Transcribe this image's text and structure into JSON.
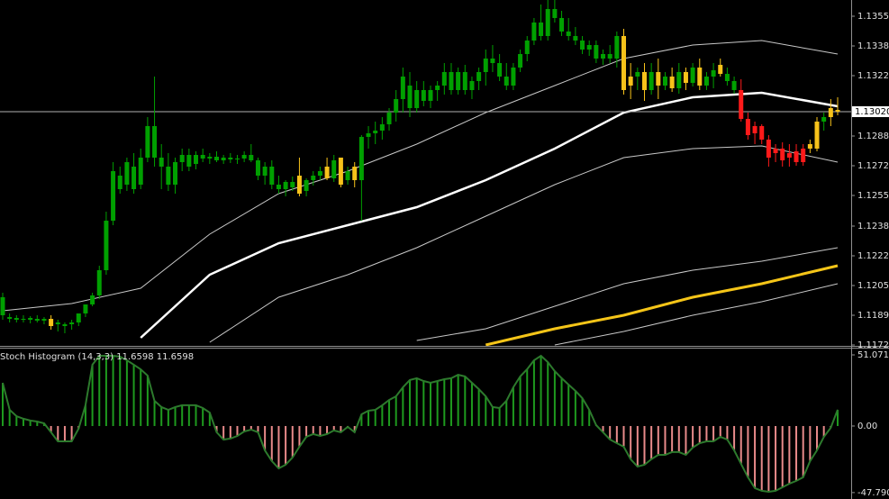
{
  "chart_data": [
    {
      "type": "candlestick",
      "ylim": [
        1.11725,
        1.1364
      ],
      "yticks": [
        {
          "value": 1.1355,
          "label": "1.13550"
        },
        1.13385,
        {
          "value": 1.1322,
          "label": "1.13220"
        },
        1.12885,
        {
          "value": 1.1272,
          "label": "1.12720"
        },
        1.12555,
        1.12385,
        {
          "value": 1.1222,
          "label": "1.12220"
        },
        1.12055,
        {
          "value": 1.1189,
          "label": "1.11890"
        },
        1.11725
      ],
      "current_price": {
        "value": 1.1302,
        "label": "1.13020"
      },
      "palette": {
        "g": "#00a000",
        "y": "#f7c21a",
        "r": "#ff1a1a"
      },
      "candle_colors": [
        "g",
        "g",
        "g",
        "g",
        "g",
        "g",
        "g",
        "y",
        "g",
        "g",
        "g",
        "g",
        "g",
        "g",
        "g",
        "g",
        "g",
        "g",
        "g",
        "g",
        "g",
        "g",
        "g",
        "g",
        "g",
        "g",
        "g",
        "g",
        "g",
        "g",
        "g",
        "g",
        "g",
        "g",
        "g",
        "g",
        "g",
        "g",
        "g",
        "g",
        "g",
        "g",
        "g",
        "y",
        "g",
        "g",
        "g",
        "y",
        "g",
        "y",
        "g",
        "y",
        "g",
        "g",
        "g",
        "g",
        "g",
        "g",
        "g",
        "g",
        "g",
        "g",
        "g",
        "g",
        "g",
        "g",
        "g",
        "g",
        "g",
        "g",
        "g",
        "g",
        "g",
        "g",
        "g",
        "g",
        "g",
        "g",
        "g",
        "g",
        "g",
        "g",
        "g",
        "g",
        "g",
        "g",
        "g",
        "g",
        "g",
        "g",
        "y",
        "y",
        "g",
        "y",
        "g",
        "y",
        "g",
        "y",
        "g",
        "y",
        "g",
        "y",
        "g",
        "g",
        "y",
        "g",
        "g",
        "r",
        "r",
        "r",
        "r",
        "r",
        "r",
        "r",
        "r",
        "r",
        "r",
        "y",
        "y",
        "g",
        "y",
        "y"
      ],
      "candles": [
        [
          1.1189,
          1.12015,
          1.11865,
          1.1199
        ],
        [
          1.1188,
          1.119,
          1.1185,
          1.1187
        ],
        [
          1.11865,
          1.1189,
          1.1185,
          1.11875
        ],
        [
          1.1187,
          1.1189,
          1.1185,
          1.11865
        ],
        [
          1.11865,
          1.11885,
          1.11845,
          1.11875
        ],
        [
          1.1187,
          1.1189,
          1.1185,
          1.1186
        ],
        [
          1.1186,
          1.1188,
          1.1184,
          1.1187
        ],
        [
          1.1187,
          1.1189,
          1.1181,
          1.1183
        ],
        [
          1.1184,
          1.11865,
          1.118,
          1.1185
        ],
        [
          1.1183,
          1.1185,
          1.1179,
          1.1184
        ],
        [
          1.1184,
          1.11865,
          1.1181,
          1.1185
        ],
        [
          1.1185,
          1.119,
          1.1183,
          1.119
        ],
        [
          1.119,
          1.1195,
          1.1188,
          1.1195
        ],
        [
          1.1195,
          1.12015,
          1.1194,
          1.12
        ],
        [
          1.12,
          1.12165,
          1.1198,
          1.1214
        ],
        [
          1.1214,
          1.12465,
          1.12115,
          1.12415
        ],
        [
          1.12415,
          1.1274,
          1.1239,
          1.1269
        ],
        [
          1.12665,
          1.12715,
          1.12565,
          1.1259
        ],
        [
          1.12615,
          1.12765,
          1.1258,
          1.1274
        ],
        [
          1.12715,
          1.1279,
          1.12565,
          1.1259
        ],
        [
          1.12615,
          1.12815,
          1.1259,
          1.12765
        ],
        [
          1.12765,
          1.1299,
          1.1274,
          1.1294
        ],
        [
          1.1294,
          1.13215,
          1.12715,
          1.12765
        ],
        [
          1.12765,
          1.1284,
          1.1259,
          1.12715
        ],
        [
          1.12715,
          1.1279,
          1.1258,
          1.12615
        ],
        [
          1.12615,
          1.12765,
          1.12565,
          1.1274
        ],
        [
          1.1274,
          1.12815,
          1.1269,
          1.1278
        ],
        [
          1.1278,
          1.12815,
          1.1269,
          1.12715
        ],
        [
          1.1273,
          1.128,
          1.127,
          1.1278
        ],
        [
          1.1278,
          1.12815,
          1.1274,
          1.1276
        ],
        [
          1.1276,
          1.1279,
          1.1273,
          1.1277
        ],
        [
          1.1277,
          1.128,
          1.1274,
          1.1275
        ],
        [
          1.1275,
          1.1278,
          1.1273,
          1.12765
        ],
        [
          1.12765,
          1.1279,
          1.12735,
          1.12755
        ],
        [
          1.12755,
          1.1278,
          1.1273,
          1.1276
        ],
        [
          1.1276,
          1.128,
          1.1274,
          1.1278
        ],
        [
          1.1278,
          1.1284,
          1.1274,
          1.1275
        ],
        [
          1.1275,
          1.12765,
          1.1264,
          1.12665
        ],
        [
          1.12665,
          1.1274,
          1.12615,
          1.12715
        ],
        [
          1.12715,
          1.1275,
          1.1259,
          1.12615
        ],
        [
          1.12615,
          1.12665,
          1.12565,
          1.1259
        ],
        [
          1.1259,
          1.1264,
          1.1255,
          1.1263
        ],
        [
          1.1263,
          1.1266,
          1.1258,
          1.126
        ],
        [
          1.12665,
          1.12765,
          1.1255,
          1.12565
        ],
        [
          1.1258,
          1.1265,
          1.1255,
          1.1264
        ],
        [
          1.1264,
          1.1269,
          1.1261,
          1.12665
        ],
        [
          1.12665,
          1.12715,
          1.1264,
          1.1269
        ],
        [
          1.12715,
          1.12765,
          1.1264,
          1.1265
        ],
        [
          1.1265,
          1.1278,
          1.1263,
          1.1275
        ],
        [
          1.12765,
          1.12765,
          1.126,
          1.12615
        ],
        [
          1.1264,
          1.12715,
          1.12615,
          1.1269
        ],
        [
          1.12715,
          1.1274,
          1.126,
          1.1264
        ],
        [
          1.1264,
          1.1289,
          1.12415,
          1.1288
        ],
        [
          1.1288,
          1.1294,
          1.12815,
          1.129
        ],
        [
          1.129,
          1.12965,
          1.1284,
          1.12915
        ],
        [
          1.12915,
          1.1299,
          1.12865,
          1.1295
        ],
        [
          1.1295,
          1.1304,
          1.12915,
          1.13015
        ],
        [
          1.13015,
          1.1314,
          1.12965,
          1.1309
        ],
        [
          1.1309,
          1.13265,
          1.13015,
          1.13215
        ],
        [
          1.13165,
          1.1324,
          1.1299,
          1.1304
        ],
        [
          1.1304,
          1.1319,
          1.13015,
          1.1314
        ],
        [
          1.1314,
          1.1319,
          1.1305,
          1.1308
        ],
        [
          1.1308,
          1.13165,
          1.1304,
          1.1314
        ],
        [
          1.1314,
          1.1319,
          1.1308,
          1.13165
        ],
        [
          1.13165,
          1.1329,
          1.13115,
          1.1324
        ],
        [
          1.1324,
          1.1329,
          1.13115,
          1.1314
        ],
        [
          1.1314,
          1.13265,
          1.13115,
          1.1324
        ],
        [
          1.1324,
          1.1328,
          1.13115,
          1.1314
        ],
        [
          1.1314,
          1.13215,
          1.1309,
          1.1319
        ],
        [
          1.1319,
          1.13265,
          1.1314,
          1.1324
        ],
        [
          1.1324,
          1.13365,
          1.13165,
          1.13315
        ],
        [
          1.13315,
          1.1339,
          1.1324,
          1.1329
        ],
        [
          1.1329,
          1.1334,
          1.1319,
          1.13215
        ],
        [
          1.13215,
          1.1329,
          1.1314,
          1.13165
        ],
        [
          1.13165,
          1.1329,
          1.1314,
          1.13265
        ],
        [
          1.13265,
          1.13365,
          1.1324,
          1.1334
        ],
        [
          1.1334,
          1.1344,
          1.133,
          1.13415
        ],
        [
          1.13415,
          1.1354,
          1.1339,
          1.13515
        ],
        [
          1.13515,
          1.13615,
          1.13415,
          1.1344
        ],
        [
          1.1344,
          1.1364,
          1.13415,
          1.1359
        ],
        [
          1.1359,
          1.1364,
          1.13515,
          1.1354
        ],
        [
          1.1354,
          1.1358,
          1.1344,
          1.13465
        ],
        [
          1.13465,
          1.1354,
          1.13415,
          1.1344
        ],
        [
          1.1344,
          1.1349,
          1.1339,
          1.13415
        ],
        [
          1.13415,
          1.1344,
          1.1334,
          1.13365
        ],
        [
          1.13365,
          1.13415,
          1.1333,
          1.1339
        ],
        [
          1.1339,
          1.13415,
          1.1329,
          1.13315
        ],
        [
          1.13315,
          1.13365,
          1.1328,
          1.1334
        ],
        [
          1.1334,
          1.1339,
          1.1329,
          1.13315
        ],
        [
          1.13315,
          1.13465,
          1.13265,
          1.1344
        ],
        [
          1.1344,
          1.1348,
          1.13115,
          1.1314
        ],
        [
          1.13165,
          1.1329,
          1.1309,
          1.13215
        ],
        [
          1.13215,
          1.13265,
          1.1314,
          1.1324
        ],
        [
          1.1324,
          1.1329,
          1.1308,
          1.1314
        ],
        [
          1.1314,
          1.1329,
          1.13115,
          1.1324
        ],
        [
          1.1324,
          1.13315,
          1.1309,
          1.13165
        ],
        [
          1.13165,
          1.1324,
          1.1314,
          1.13215
        ],
        [
          1.13215,
          1.13265,
          1.1313,
          1.1315
        ],
        [
          1.1315,
          1.1329,
          1.1312,
          1.1324
        ],
        [
          1.1324,
          1.13265,
          1.1314,
          1.1318
        ],
        [
          1.1318,
          1.1329,
          1.1316,
          1.13265
        ],
        [
          1.13265,
          1.13315,
          1.1314,
          1.13165
        ],
        [
          1.13165,
          1.1324,
          1.1314,
          1.13215
        ],
        [
          1.13215,
          1.1329,
          1.1315,
          1.1325
        ],
        [
          1.1328,
          1.13315,
          1.13215,
          1.1323
        ],
        [
          1.1323,
          1.13265,
          1.13165,
          1.1319
        ],
        [
          1.1319,
          1.13215,
          1.1312,
          1.1314
        ],
        [
          1.1314,
          1.132,
          1.12965,
          1.1298
        ],
        [
          1.1298,
          1.13015,
          1.12865,
          1.1289
        ],
        [
          1.129,
          1.12965,
          1.1284,
          1.1294
        ],
        [
          1.1294,
          1.1295,
          1.1284,
          1.12865
        ],
        [
          1.12865,
          1.1289,
          1.12715,
          1.12765
        ],
        [
          1.1279,
          1.1284,
          1.1274,
          1.12815
        ],
        [
          1.12815,
          1.1285,
          1.12715,
          1.1275
        ],
        [
          1.12765,
          1.1284,
          1.12715,
          1.1279
        ],
        [
          1.128,
          1.1284,
          1.1272,
          1.1274
        ],
        [
          1.1274,
          1.1284,
          1.1272,
          1.12815
        ],
        [
          1.12815,
          1.12865,
          1.1279,
          1.1284
        ],
        [
          1.12815,
          1.1299,
          1.128,
          1.12965
        ],
        [
          1.12965,
          1.13015,
          1.12915,
          1.1299
        ],
        [
          1.1299,
          1.1309,
          1.1294,
          1.1304
        ],
        [
          1.1303,
          1.131,
          1.13,
          1.1302
        ]
      ],
      "line_x": [
        0,
        10,
        20,
        30,
        40,
        50,
        60,
        70,
        80,
        90,
        100,
        110,
        121
      ],
      "lines": [
        {
          "color": "#c8c8c8",
          "width": 1,
          "values": [
            1.11915,
            1.11955,
            1.1204,
            1.1234,
            1.12565,
            1.1269,
            1.1284,
            1.13015,
            1.13165,
            1.13315,
            1.1339,
            1.13415,
            1.1334
          ]
        },
        {
          "color": "#ffffff",
          "width": 2.5,
          "values": [
            null,
            null,
            1.11765,
            1.12115,
            1.1229,
            1.1239,
            1.1249,
            1.1264,
            1.12815,
            1.13015,
            1.131,
            1.13125,
            1.1305
          ]
        },
        {
          "color": "#c8c8c8",
          "width": 1,
          "values": [
            null,
            null,
            null,
            1.1174,
            1.1199,
            1.12115,
            1.12265,
            1.1244,
            1.12615,
            1.12765,
            1.12815,
            1.1283,
            1.1274
          ]
        },
        {
          "color": "#c8c8c8",
          "width": 1,
          "values": [
            null,
            null,
            null,
            null,
            null,
            null,
            1.1175,
            1.11815,
            1.1194,
            1.12065,
            1.1214,
            1.1219,
            1.12265
          ]
        },
        {
          "color": "#f5c518",
          "width": 3,
          "values": [
            null,
            null,
            null,
            null,
            null,
            null,
            null,
            1.11725,
            1.11815,
            1.1189,
            1.1199,
            1.12065,
            1.12165
          ]
        },
        {
          "color": "#c8c8c8",
          "width": 1,
          "values": [
            null,
            null,
            null,
            null,
            null,
            null,
            null,
            null,
            1.11725,
            1.118,
            1.1189,
            1.11965,
            1.12065
          ]
        }
      ]
    },
    {
      "type": "bar",
      "title": "Stoch Histogram (14,3,3) 11.6598 11.6598",
      "ylim": [
        -52.4,
        55.6
      ],
      "yticks": [
        51.0717,
        {
          "value": 0,
          "label": "0.00"
        },
        -47.7906
      ],
      "colors": {
        "positive": "#1e9a1e",
        "negative": "#e88a8a",
        "outline": "#2d7a2d"
      },
      "values": [
        31,
        11.6,
        7.1,
        5.2,
        3.9,
        3.2,
        1.9,
        -4.5,
        -11,
        -11,
        -11,
        -1.9,
        14.9,
        44,
        50.4,
        50.4,
        50.4,
        49.8,
        47.2,
        44,
        40.7,
        36.2,
        18.1,
        13.6,
        11.6,
        13.6,
        14.9,
        14.9,
        14.9,
        12.9,
        9.7,
        -4.5,
        -9.7,
        -9,
        -7.1,
        -3.9,
        -2.6,
        -4.5,
        -17.5,
        -25.2,
        -30.4,
        -27.8,
        -22.6,
        -14.9,
        -7.8,
        -5.8,
        -7.1,
        -5.8,
        -3.2,
        -4.5,
        -0.6,
        -4.5,
        8.4,
        11,
        11.6,
        14.9,
        18.7,
        21.3,
        27.8,
        33,
        34.3,
        32.3,
        31,
        32.3,
        33.6,
        34.3,
        36.8,
        35.6,
        31,
        26.5,
        21.3,
        13.6,
        12.9,
        18.1,
        27.8,
        35.6,
        40.7,
        47.2,
        50.4,
        45.9,
        39.4,
        34.3,
        29.7,
        25.2,
        20,
        11.6,
        0.6,
        -4.5,
        -9.7,
        -12.3,
        -14.9,
        -23.9,
        -29.1,
        -27.8,
        -23.9,
        -20.7,
        -20.7,
        -18.7,
        -18.7,
        -20.7,
        -15.5,
        -12.3,
        -11,
        -11,
        -7.8,
        -9.7,
        -17.5,
        -27.1,
        -36.8,
        -44.6,
        -46.5,
        -47.2,
        -46.5,
        -44,
        -41.4,
        -39.4,
        -36.8,
        -25.2,
        -17.5,
        -7.8,
        -1.3,
        11.66
      ]
    }
  ]
}
